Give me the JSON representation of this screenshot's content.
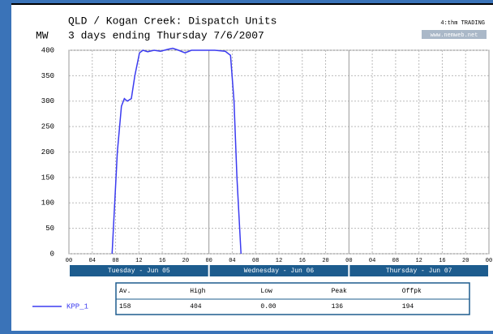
{
  "chart_data": {
    "type": "line",
    "title": "QLD / Kogan Creek: Dispatch Units",
    "subtitle": "3 days ending Thursday 7/6/2007",
    "y_label": "MW",
    "brand": "4:thm TRADING",
    "site": "www.nemweb.net",
    "x": [
      7.4,
      8.3,
      9.0,
      9.5,
      10.0,
      10.7,
      11.3,
      12.1,
      12.7,
      13.5,
      14.6,
      15.7,
      17.0,
      17.8,
      18.8,
      19.9,
      21.0,
      22.9,
      25.0,
      26.8,
      27.7,
      28.3,
      28.8,
      29.5
    ],
    "series": [
      {
        "name": "KPP_1",
        "color": "#3b3bf0",
        "values": [
          0,
          200,
          290,
          305,
          300,
          305,
          350,
          395,
          400,
          397,
          400,
          398,
          402,
          404,
          400,
          395,
          400,
          400,
          400,
          398,
          390,
          300,
          150,
          0
        ]
      }
    ],
    "xlim": [
      0,
      72
    ],
    "ylim": [
      0,
      400
    ],
    "yticks": [
      0,
      50,
      100,
      150,
      200,
      250,
      300,
      350,
      400
    ],
    "xticks": [
      {
        "value": 0,
        "label": "00"
      },
      {
        "value": 4,
        "label": "04"
      },
      {
        "value": 8,
        "label": "08"
      },
      {
        "value": 12,
        "label": "12"
      },
      {
        "value": 16,
        "label": "16"
      },
      {
        "value": 20,
        "label": "20"
      },
      {
        "value": 24,
        "label": "00"
      },
      {
        "value": 28,
        "label": "04"
      },
      {
        "value": 32,
        "label": "08"
      },
      {
        "value": 36,
        "label": "12"
      },
      {
        "value": 40,
        "label": "16"
      },
      {
        "value": 44,
        "label": "20"
      },
      {
        "value": 48,
        "label": "00"
      },
      {
        "value": 52,
        "label": "04"
      },
      {
        "value": 56,
        "label": "08"
      },
      {
        "value": 60,
        "label": "12"
      },
      {
        "value": 64,
        "label": "16"
      },
      {
        "value": 68,
        "label": "20"
      },
      {
        "value": 72,
        "label": "00"
      }
    ],
    "day_bands": [
      {
        "label": "Tuesday - Jun 05",
        "start": 0,
        "end": 24
      },
      {
        "label": "Wednesday - Jun 06",
        "start": 24,
        "end": 48
      },
      {
        "label": "Thursday - Jun 07",
        "start": 48,
        "end": 72
      }
    ],
    "stats": {
      "headers": [
        "Av.",
        "High",
        "Low",
        "Peak",
        "Offpk"
      ],
      "values": [
        "158",
        "404",
        "0.00",
        "136",
        "194"
      ]
    },
    "grid": true
  }
}
